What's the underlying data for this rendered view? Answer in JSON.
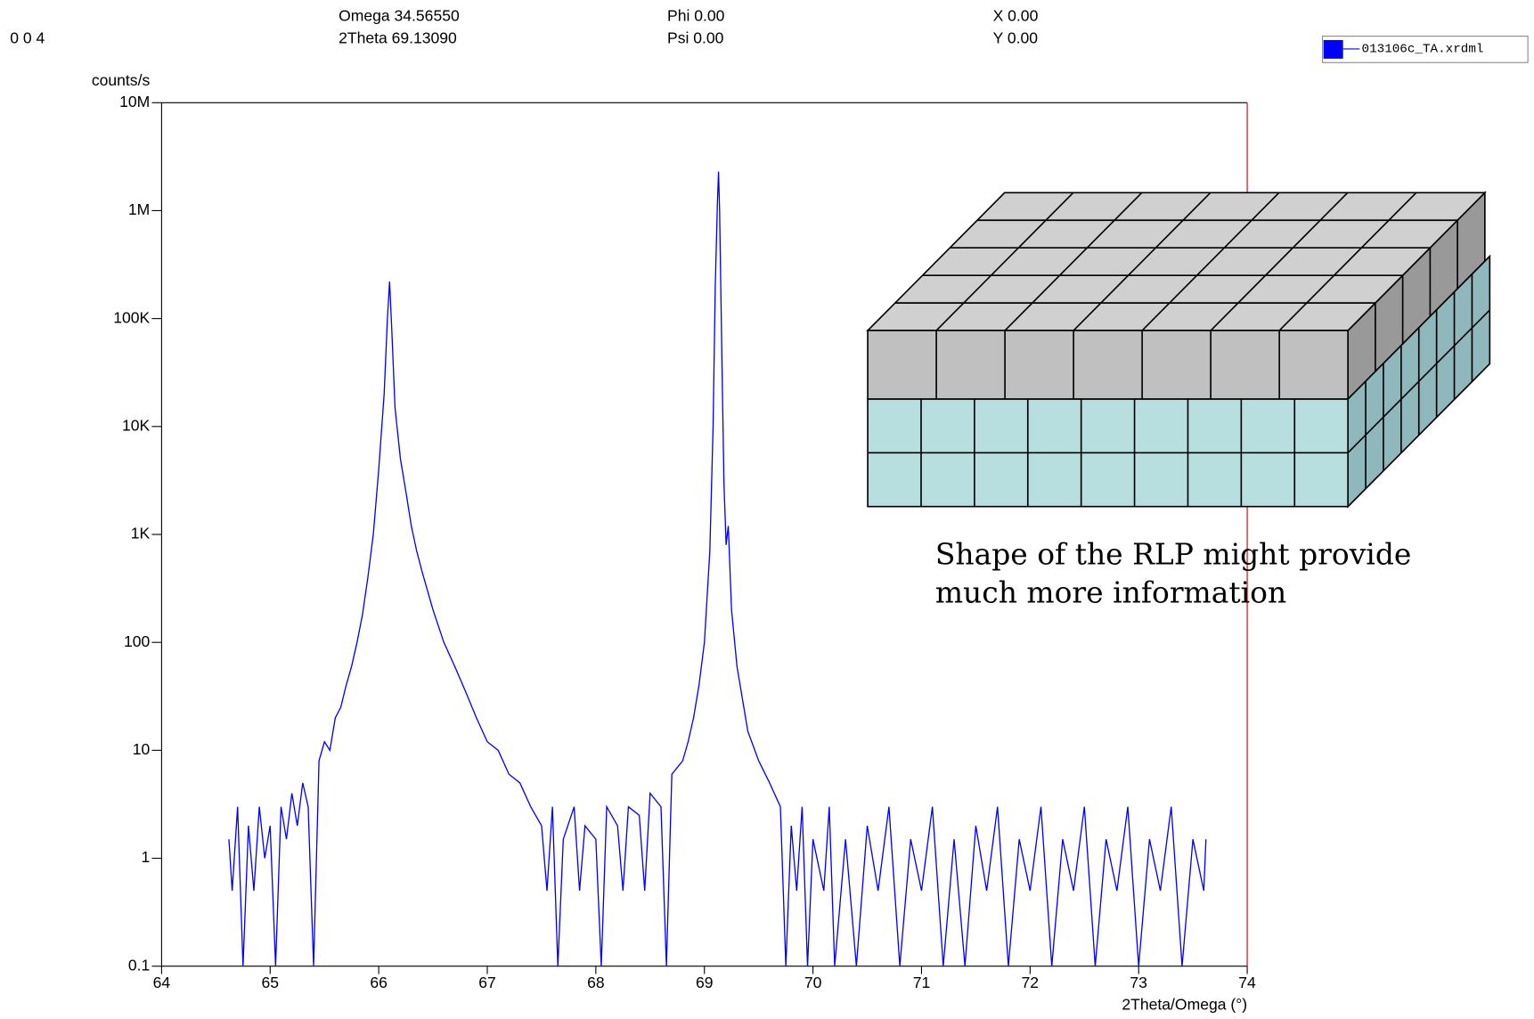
{
  "chart_data": {
    "type": "line",
    "header": {
      "reflection": "0 0 4",
      "omega": "Omega 34.56550",
      "two_theta": "2Theta 69.13090",
      "phi": "Phi 0.00",
      "psi": "Psi 0.00",
      "x_pos": "X 0.00",
      "y_pos": "Y 0.00"
    },
    "y_label": "counts/s",
    "x_label": "2Theta/Omega (°)",
    "annotation": [
      "Shape of the RLP might provide",
      "much more information"
    ],
    "log_y": true,
    "legend_position": "top-right",
    "xlim": [
      64,
      74
    ],
    "xticks": [
      64,
      65,
      66,
      67,
      68,
      69,
      70,
      71,
      72,
      73,
      74
    ],
    "ylim": [
      0.1,
      10000000
    ],
    "yticks": [
      0.1,
      1,
      10,
      100,
      {
        "value": 1000,
        "label": "1K"
      },
      {
        "value": 10000,
        "label": "10K"
      },
      {
        "value": 100000,
        "label": "100K"
      },
      {
        "value": 1000000,
        "label": "1M"
      },
      {
        "value": 10000000,
        "label": "10M"
      }
    ],
    "x": [
      64.62,
      64.65,
      64.7,
      64.75,
      64.8,
      64.85,
      64.9,
      64.95,
      65.0,
      65.05,
      65.1,
      65.15,
      65.2,
      65.25,
      65.3,
      65.35,
      65.4,
      65.45,
      65.5,
      65.55,
      65.6,
      65.65,
      65.7,
      65.75,
      65.8,
      65.85,
      65.9,
      65.95,
      66.0,
      66.05,
      66.08,
      66.1,
      66.12,
      66.15,
      66.2,
      66.25,
      66.3,
      66.35,
      66.4,
      66.45,
      66.5,
      66.6,
      66.7,
      66.8,
      66.9,
      67.0,
      67.1,
      67.2,
      67.3,
      67.4,
      67.5,
      67.55,
      67.6,
      67.65,
      67.7,
      67.8,
      67.85,
      67.9,
      68.0,
      68.05,
      68.1,
      68.2,
      68.25,
      68.3,
      68.4,
      68.45,
      68.5,
      68.6,
      68.65,
      68.7,
      68.8,
      68.85,
      68.9,
      68.95,
      69.0,
      69.05,
      69.08,
      69.1,
      69.12,
      69.13,
      69.14,
      69.16,
      69.18,
      69.2,
      69.22,
      69.25,
      69.3,
      69.35,
      69.4,
      69.5,
      69.6,
      69.7,
      69.75,
      69.8,
      69.85,
      69.9,
      69.95,
      70.0,
      70.1,
      70.15,
      70.2,
      70.3,
      70.4,
      70.5,
      70.6,
      70.7,
      70.8,
      70.9,
      71.0,
      71.1,
      71.2,
      71.3,
      71.4,
      71.5,
      71.6,
      71.7,
      71.8,
      71.9,
      72.0,
      72.1,
      72.2,
      72.3,
      72.4,
      72.5,
      72.6,
      72.7,
      72.8,
      72.9,
      73.0,
      73.1,
      73.2,
      73.3,
      73.4,
      73.5,
      73.6,
      73.62
    ],
    "series": [
      {
        "name": "013106c_TA.xrdml",
        "color": "#0000ff",
        "values": [
          1.5,
          0.5,
          3,
          0.1,
          2,
          0.5,
          3,
          1,
          2,
          0.1,
          3,
          1.5,
          4,
          2,
          5,
          3,
          0.1,
          8,
          12,
          10,
          20,
          25,
          40,
          60,
          100,
          180,
          400,
          1000,
          4000,
          20000,
          100000,
          220000,
          80000,
          15000,
          5000,
          2500,
          1200,
          700,
          450,
          300,
          200,
          100,
          60,
          35,
          20,
          12,
          10,
          6,
          5,
          3,
          2,
          0.5,
          3,
          0.1,
          1.5,
          3,
          0.5,
          2,
          1.5,
          0.1,
          3,
          2,
          0.5,
          3,
          2.5,
          0.5,
          4,
          3,
          0.1,
          6,
          8,
          12,
          20,
          40,
          100,
          700,
          10000,
          200000,
          1200000,
          2300000,
          1000000,
          50000,
          3000,
          800,
          1200,
          200,
          60,
          30,
          15,
          8,
          5,
          3,
          0.1,
          2,
          0.5,
          3,
          0.1,
          1.5,
          0.5,
          3,
          0.1,
          1.5,
          0.1,
          2,
          0.5,
          3,
          0.1,
          1.5,
          0.5,
          3,
          0.1,
          1.5,
          0.1,
          2,
          0.5,
          3,
          0.1,
          1.5,
          0.5,
          3,
          0.1,
          1.5,
          0.5,
          3,
          0.1,
          1.5,
          0.5,
          3,
          0.1,
          1.5,
          0.5,
          3,
          0.1,
          1.5,
          0.5,
          1.5
        ]
      }
    ]
  }
}
